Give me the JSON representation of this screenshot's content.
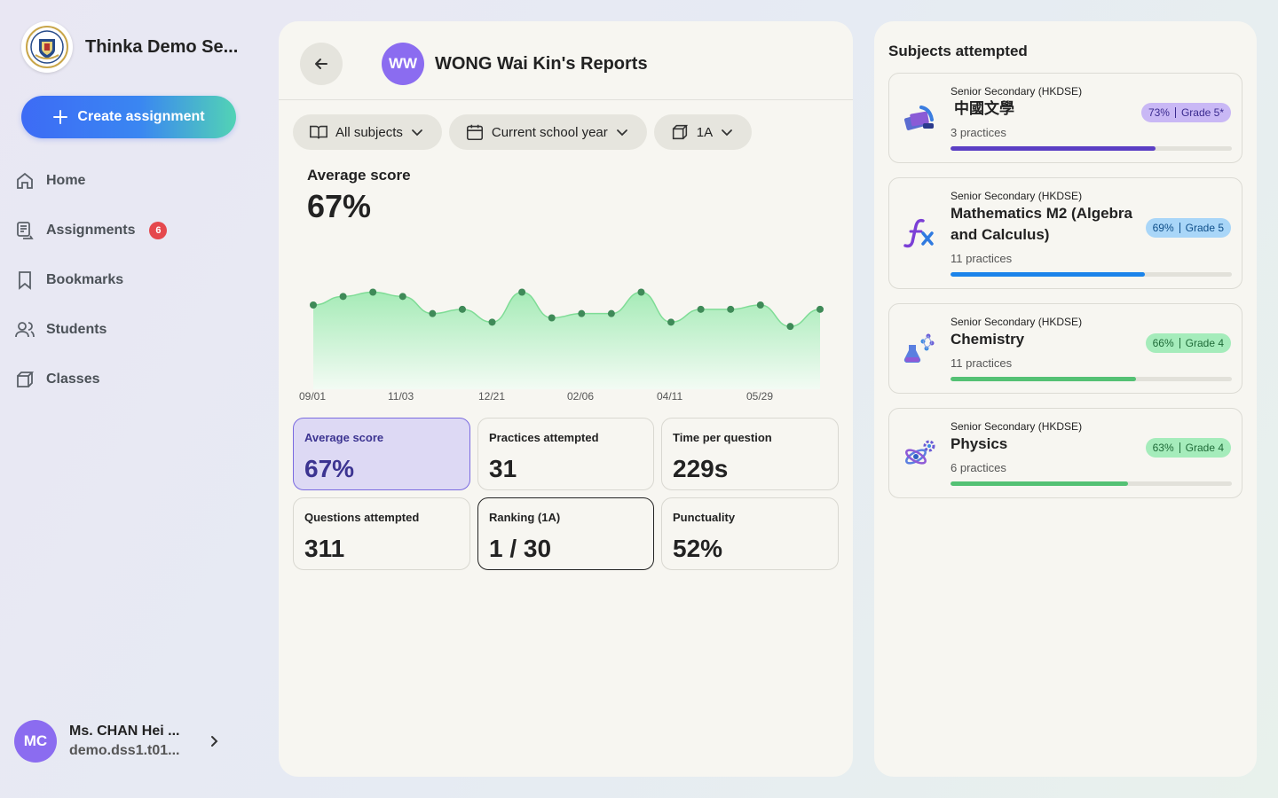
{
  "sidebar": {
    "school_name": "Thinka Demo Se...",
    "create_label": "Create assignment",
    "items": [
      {
        "label": "Home"
      },
      {
        "label": "Assignments",
        "badge": "6"
      },
      {
        "label": "Bookmarks"
      },
      {
        "label": "Students"
      },
      {
        "label": "Classes"
      }
    ],
    "user": {
      "initials": "MC",
      "name": "Ms. CHAN Hei ...",
      "email": "demo.dss1.t01..."
    }
  },
  "header": {
    "initials": "WW",
    "title": "WONG Wai Kin's Reports"
  },
  "filters": {
    "subject": "All subjects",
    "period": "Current school year",
    "class": "1A"
  },
  "average": {
    "label": "Average score",
    "value": "67%"
  },
  "chart_data": {
    "type": "area",
    "x_ticks": [
      "09/01",
      "11/03",
      "12/21",
      "02/06",
      "04/11",
      "05/29"
    ],
    "values": [
      73,
      75,
      76,
      75,
      71,
      72,
      69,
      76,
      70,
      71,
      71,
      76,
      69,
      72,
      72,
      73,
      68,
      72
    ],
    "ylim": [
      55,
      85
    ],
    "colors": {
      "line": "#7fdc96",
      "fill_top": "#a6ebb7",
      "fill_bottom": "#f3fbf4",
      "dot": "#3f8a58"
    }
  },
  "stats": [
    {
      "label": "Average score",
      "value": "67%"
    },
    {
      "label": "Practices attempted",
      "value": "31"
    },
    {
      "label": "Time per question",
      "value": "229s"
    },
    {
      "label": "Questions attempted",
      "value": "311"
    },
    {
      "label": "Ranking (1A)",
      "value": "1 / 30"
    },
    {
      "label": "Punctuality",
      "value": "52%"
    }
  ],
  "subjects_title": "Subjects attempted",
  "subjects": [
    {
      "level": "Senior Secondary (HKDSE)",
      "name": "中國文學",
      "count": "3 practices",
      "percent": "73%",
      "grade": "Grade 5*",
      "progress": 0.73,
      "color": "#5b3fc4",
      "pill_bg": "#c9b8f5",
      "pill_fg": "#3a2a8f",
      "icon": "books-icon"
    },
    {
      "level": "Senior Secondary (HKDSE)",
      "name": "Mathematics M2 (Algebra and Calculus)",
      "count": "11 practices",
      "percent": "69%",
      "grade": "Grade 5",
      "progress": 0.69,
      "color": "#1b84ea",
      "pill_bg": "#a9d6f8",
      "pill_fg": "#0f4f8a",
      "icon": "function-icon"
    },
    {
      "level": "Senior Secondary (HKDSE)",
      "name": "Chemistry",
      "count": "11 practices",
      "percent": "66%",
      "grade": "Grade 4",
      "progress": 0.66,
      "color": "#54c174",
      "pill_bg": "#a5ecbb",
      "pill_fg": "#1f6b38",
      "icon": "flask-icon"
    },
    {
      "level": "Senior Secondary (HKDSE)",
      "name": "Physics",
      "count": "6 practices",
      "percent": "63%",
      "grade": "Grade 4",
      "progress": 0.63,
      "color": "#54c174",
      "pill_bg": "#a5ecbb",
      "pill_fg": "#1f6b38",
      "icon": "atom-icon"
    }
  ]
}
